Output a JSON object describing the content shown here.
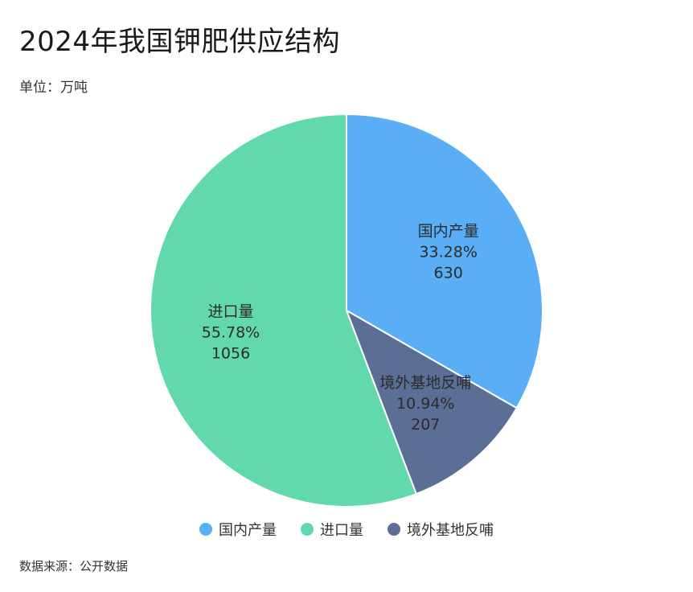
{
  "header": {
    "title": "2024年我国钾肥供应结构",
    "unit": "单位：万吨"
  },
  "footer": {
    "source": "数据来源：公开数据"
  },
  "chart_data": {
    "type": "pie",
    "title": "2024年我国钾肥供应结构",
    "unit": "万吨",
    "legend_position": "bottom",
    "slices": [
      {
        "name": "国内产量",
        "value": 630,
        "percent": "33.28%",
        "value_label": "630",
        "color": "#5aaef5"
      },
      {
        "name": "境外基地反哺",
        "value": 207,
        "percent": "10.94%",
        "value_label": "207",
        "color": "#5b6e96"
      },
      {
        "name": "进口量",
        "value": 1056,
        "percent": "55.78%",
        "value_label": "1056",
        "color": "#62d9ad"
      }
    ]
  }
}
